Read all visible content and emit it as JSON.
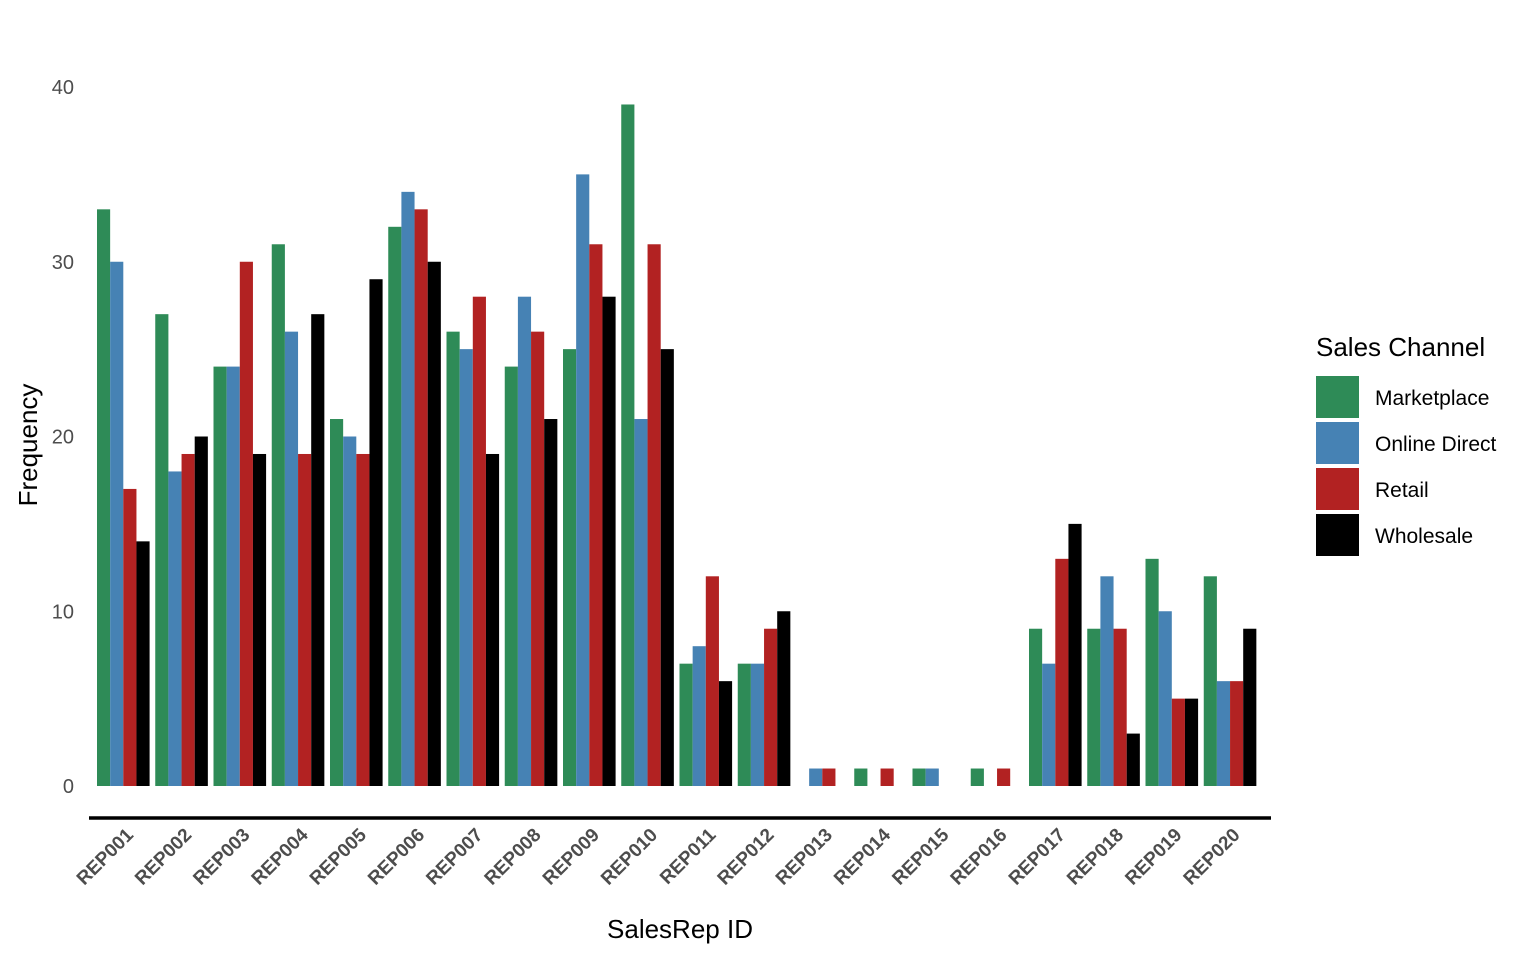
{
  "chart_data": {
    "type": "bar",
    "title": "",
    "xlabel": "SalesRep ID",
    "ylabel": "Frequency",
    "ylim": [
      0,
      40
    ],
    "yticks": [
      0,
      10,
      20,
      30,
      40
    ],
    "grid": false,
    "legend": {
      "title": "Sales Channel",
      "placement": "right"
    },
    "categories": [
      "REP001",
      "REP002",
      "REP003",
      "REP004",
      "REP005",
      "REP006",
      "REP007",
      "REP008",
      "REP009",
      "REP010",
      "REP011",
      "REP012",
      "REP013",
      "REP014",
      "REP015",
      "REP016",
      "REP017",
      "REP018",
      "REP019",
      "REP020"
    ],
    "series": [
      {
        "name": "Marketplace",
        "color": "#2e8b57",
        "values": [
          33,
          27,
          24,
          31,
          21,
          32,
          26,
          24,
          25,
          39,
          7,
          7,
          null,
          1,
          1,
          1,
          9,
          9,
          13,
          12
        ]
      },
      {
        "name": "Online Direct",
        "color": "#4682b4",
        "values": [
          30,
          18,
          24,
          26,
          20,
          34,
          25,
          28,
          35,
          21,
          8,
          7,
          1,
          null,
          1,
          null,
          7,
          12,
          10,
          6
        ]
      },
      {
        "name": "Retail",
        "color": "#b22222",
        "values": [
          17,
          19,
          30,
          19,
          19,
          33,
          28,
          26,
          31,
          31,
          12,
          9,
          1,
          1,
          null,
          1,
          13,
          9,
          5,
          6
        ]
      },
      {
        "name": "Wholesale",
        "color": "#000000",
        "values": [
          14,
          20,
          19,
          27,
          29,
          30,
          19,
          21,
          28,
          25,
          6,
          10,
          null,
          null,
          null,
          null,
          15,
          3,
          5,
          9
        ]
      }
    ]
  }
}
